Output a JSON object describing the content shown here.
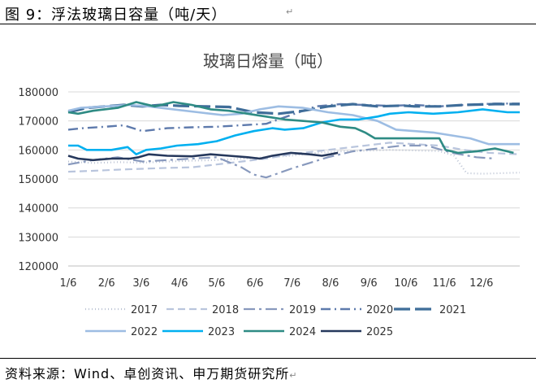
{
  "figure": {
    "caption": "图 9：浮法玻璃日容量（吨/天）",
    "source_prefix": "资料来源：Wind、卓创资讯、申万期货研究所"
  },
  "chart_data": {
    "type": "line",
    "title": "玻璃日熔量（吨）",
    "xlabel": "",
    "ylabel": "",
    "ylim": [
      120000,
      180000
    ],
    "yticks": [
      120000,
      130000,
      140000,
      150000,
      160000,
      170000,
      180000
    ],
    "ytick_labels": [
      "120000",
      "130000",
      "140000",
      "150000",
      "160000",
      "170000",
      "180000"
    ],
    "x_domain_days": [
      0,
      365
    ],
    "x_ticks": [
      {
        "label": "1/6",
        "day": 0
      },
      {
        "label": "2/6",
        "day": 31
      },
      {
        "label": "3/6",
        "day": 59
      },
      {
        "label": "4/6",
        "day": 90
      },
      {
        "label": "5/6",
        "day": 120
      },
      {
        "label": "6/6",
        "day": 151
      },
      {
        "label": "7/6",
        "day": 181
      },
      {
        "label": "8/6",
        "day": 212
      },
      {
        "label": "9/6",
        "day": 243
      },
      {
        "label": "10/6",
        "day": 273
      },
      {
        "label": "11/6",
        "day": 304
      },
      {
        "label": "12/6",
        "day": 334
      }
    ],
    "grid": "horizontal",
    "legend_position": "bottom",
    "series": [
      {
        "name": "2017",
        "color": "#bcc4d4",
        "dash": "1,3",
        "width": 2.2,
        "points": [
          [
            0,
            156000
          ],
          [
            20,
            155500
          ],
          [
            40,
            155800
          ],
          [
            60,
            155600
          ],
          [
            80,
            156000
          ],
          [
            100,
            156300
          ],
          [
            120,
            156500
          ],
          [
            140,
            157000
          ],
          [
            160,
            157500
          ],
          [
            180,
            158000
          ],
          [
            200,
            159000
          ],
          [
            220,
            159500
          ],
          [
            240,
            159700
          ],
          [
            260,
            160000
          ],
          [
            280,
            159800
          ],
          [
            300,
            159600
          ],
          [
            312,
            158000
          ],
          [
            322,
            152000
          ],
          [
            335,
            151800
          ],
          [
            350,
            152000
          ],
          [
            365,
            152200
          ]
        ]
      },
      {
        "name": "2018",
        "color": "#b9c5dd",
        "dash": "9,5",
        "width": 2.2,
        "points": [
          [
            0,
            152500
          ],
          [
            20,
            152800
          ],
          [
            40,
            153200
          ],
          [
            60,
            153500
          ],
          [
            80,
            153800
          ],
          [
            100,
            154000
          ],
          [
            120,
            155000
          ],
          [
            140,
            156000
          ],
          [
            160,
            157000
          ],
          [
            180,
            158500
          ],
          [
            200,
            159500
          ],
          [
            220,
            160500
          ],
          [
            240,
            161500
          ],
          [
            260,
            162500
          ],
          [
            280,
            162000
          ],
          [
            300,
            161500
          ],
          [
            320,
            160000
          ],
          [
            340,
            159000
          ],
          [
            365,
            158500
          ]
        ]
      },
      {
        "name": "2019",
        "color": "#8899bd",
        "dash": "14,5,3,5",
        "width": 2.2,
        "points": [
          [
            0,
            155000
          ],
          [
            20,
            156500
          ],
          [
            40,
            157500
          ],
          [
            60,
            156000
          ],
          [
            80,
            156500
          ],
          [
            100,
            157000
          ],
          [
            120,
            157500
          ],
          [
            140,
            154000
          ],
          [
            150,
            151500
          ],
          [
            160,
            150500
          ],
          [
            170,
            152000
          ],
          [
            180,
            153500
          ],
          [
            195,
            155500
          ],
          [
            210,
            157500
          ],
          [
            230,
            159500
          ],
          [
            250,
            160500
          ],
          [
            270,
            161500
          ],
          [
            290,
            161500
          ],
          [
            310,
            159000
          ],
          [
            330,
            157500
          ],
          [
            345,
            157000
          ]
        ]
      },
      {
        "name": "2020",
        "color": "#5e7aac",
        "dash": "12,5,2,5",
        "width": 2.4,
        "points": [
          [
            0,
            167000
          ],
          [
            12,
            167500
          ],
          [
            30,
            168000
          ],
          [
            45,
            168500
          ],
          [
            60,
            166500
          ],
          [
            80,
            167500
          ],
          [
            100,
            167800
          ],
          [
            120,
            168000
          ],
          [
            140,
            168500
          ],
          [
            160,
            169000
          ],
          [
            180,
            172000
          ],
          [
            200,
            175000
          ],
          [
            220,
            175800
          ],
          [
            240,
            175500
          ],
          [
            260,
            175200
          ],
          [
            280,
            175500
          ],
          [
            300,
            175000
          ],
          [
            320,
            175500
          ],
          [
            345,
            176000
          ],
          [
            365,
            176000
          ]
        ]
      },
      {
        "name": "2021",
        "color": "#3f6d99",
        "dash": "20,6",
        "width": 3.2,
        "points": [
          [
            0,
            173000
          ],
          [
            15,
            174500
          ],
          [
            30,
            175000
          ],
          [
            45,
            175500
          ],
          [
            60,
            175000
          ],
          [
            75,
            175500
          ],
          [
            90,
            175200
          ],
          [
            110,
            175000
          ],
          [
            130,
            174800
          ],
          [
            150,
            173000
          ],
          [
            170,
            172500
          ],
          [
            190,
            173500
          ],
          [
            210,
            175000
          ],
          [
            230,
            175800
          ],
          [
            250,
            175000
          ],
          [
            270,
            175300
          ],
          [
            280,
            175000
          ],
          [
            300,
            175000
          ],
          [
            320,
            175500
          ],
          [
            345,
            175800
          ],
          [
            365,
            175800
          ]
        ]
      },
      {
        "name": "2022",
        "color": "#9dbde3",
        "dash": "",
        "width": 2.6,
        "points": [
          [
            0,
            173500
          ],
          [
            10,
            174500
          ],
          [
            30,
            175000
          ],
          [
            50,
            175500
          ],
          [
            65,
            175000
          ],
          [
            85,
            174000
          ],
          [
            105,
            173000
          ],
          [
            125,
            172000
          ],
          [
            140,
            172500
          ],
          [
            155,
            174000
          ],
          [
            170,
            175000
          ],
          [
            190,
            174500
          ],
          [
            210,
            173000
          ],
          [
            230,
            172000
          ],
          [
            250,
            170000
          ],
          [
            265,
            167000
          ],
          [
            295,
            166000
          ],
          [
            310,
            165000
          ],
          [
            325,
            164000
          ],
          [
            340,
            162000
          ],
          [
            365,
            162000
          ]
        ]
      },
      {
        "name": "2023",
        "color": "#00b0f0",
        "dash": "",
        "width": 2.6,
        "points": [
          [
            0,
            161500
          ],
          [
            8,
            161500
          ],
          [
            15,
            160000
          ],
          [
            35,
            160000
          ],
          [
            48,
            161000
          ],
          [
            55,
            158500
          ],
          [
            63,
            160000
          ],
          [
            75,
            160500
          ],
          [
            88,
            161500
          ],
          [
            105,
            162000
          ],
          [
            120,
            163000
          ],
          [
            135,
            165000
          ],
          [
            150,
            166500
          ],
          [
            165,
            167500
          ],
          [
            175,
            167000
          ],
          [
            190,
            167500
          ],
          [
            205,
            169500
          ],
          [
            220,
            170500
          ],
          [
            235,
            170500
          ],
          [
            250,
            171500
          ],
          [
            260,
            172500
          ],
          [
            275,
            173000
          ],
          [
            295,
            172500
          ],
          [
            315,
            173000
          ],
          [
            335,
            174000
          ],
          [
            355,
            173000
          ],
          [
            365,
            173000
          ]
        ]
      },
      {
        "name": "2024",
        "color": "#2e8b84",
        "dash": "",
        "width": 2.6,
        "points": [
          [
            0,
            173000
          ],
          [
            8,
            172500
          ],
          [
            20,
            173500
          ],
          [
            40,
            174500
          ],
          [
            55,
            176500
          ],
          [
            60,
            176000
          ],
          [
            70,
            175000
          ],
          [
            85,
            176500
          ],
          [
            100,
            175500
          ],
          [
            115,
            174000
          ],
          [
            130,
            173500
          ],
          [
            145,
            172500
          ],
          [
            160,
            171500
          ],
          [
            175,
            170500
          ],
          [
            190,
            170000
          ],
          [
            205,
            169500
          ],
          [
            220,
            168000
          ],
          [
            232,
            167500
          ],
          [
            240,
            166000
          ],
          [
            248,
            164000
          ],
          [
            300,
            164000
          ],
          [
            305,
            160000
          ],
          [
            315,
            159000
          ],
          [
            330,
            159500
          ],
          [
            345,
            160500
          ],
          [
            360,
            159000
          ]
        ]
      },
      {
        "name": "2025",
        "color": "#26385c",
        "dash": "",
        "width": 2.6,
        "points": [
          [
            0,
            158000
          ],
          [
            8,
            157000
          ],
          [
            20,
            156500
          ],
          [
            35,
            157000
          ],
          [
            50,
            157000
          ],
          [
            57,
            157500
          ],
          [
            65,
            158500
          ],
          [
            80,
            158000
          ],
          [
            100,
            157800
          ],
          [
            115,
            158500
          ],
          [
            130,
            158000
          ],
          [
            145,
            157500
          ],
          [
            155,
            157000
          ],
          [
            165,
            158000
          ],
          [
            180,
            159000
          ],
          [
            195,
            158500
          ],
          [
            205,
            158000
          ],
          [
            212,
            158500
          ],
          [
            218,
            159000
          ]
        ]
      }
    ]
  }
}
